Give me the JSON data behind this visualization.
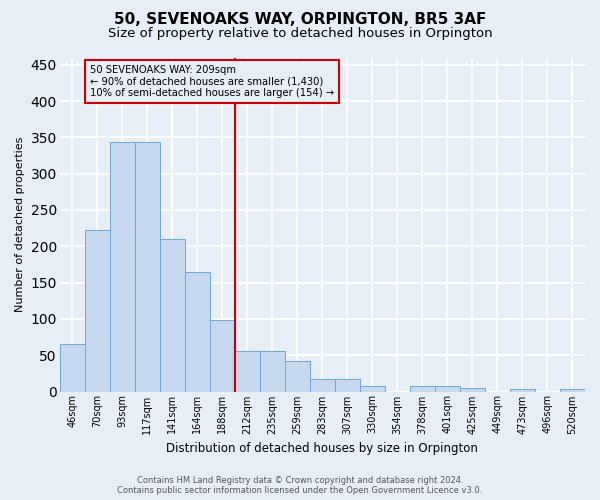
{
  "title": "50, SEVENOAKS WAY, ORPINGTON, BR5 3AF",
  "subtitle": "Size of property relative to detached houses in Orpington",
  "xlabel": "Distribution of detached houses by size in Orpington",
  "ylabel": "Number of detached properties",
  "bar_labels": [
    "46sqm",
    "70sqm",
    "93sqm",
    "117sqm",
    "141sqm",
    "164sqm",
    "188sqm",
    "212sqm",
    "235sqm",
    "259sqm",
    "283sqm",
    "307sqm",
    "330sqm",
    "354sqm",
    "378sqm",
    "401sqm",
    "425sqm",
    "449sqm",
    "473sqm",
    "496sqm",
    "520sqm"
  ],
  "bar_values": [
    65,
    222,
    343,
    343,
    210,
    165,
    99,
    56,
    56,
    42,
    17,
    17,
    8,
    0,
    7,
    7,
    5,
    0,
    4,
    0,
    4
  ],
  "bar_color": "#c5d8ee",
  "bar_edge_color": "#6aaad4",
  "background_color": "#e8eef6",
  "grid_color": "#ffffff",
  "vline_color": "#cc0000",
  "annotation_text": "50 SEVENOAKS WAY: 209sqm\n← 90% of detached houses are smaller (1,430)\n10% of semi-detached houses are larger (154) →",
  "annotation_box_color": "#cc0000",
  "footer_line1": "Contains HM Land Registry data © Crown copyright and database right 2024.",
  "footer_line2": "Contains public sector information licensed under the Open Government Licence v3.0.",
  "ylim": [
    0,
    460
  ],
  "title_fontsize": 11,
  "subtitle_fontsize": 9.5
}
